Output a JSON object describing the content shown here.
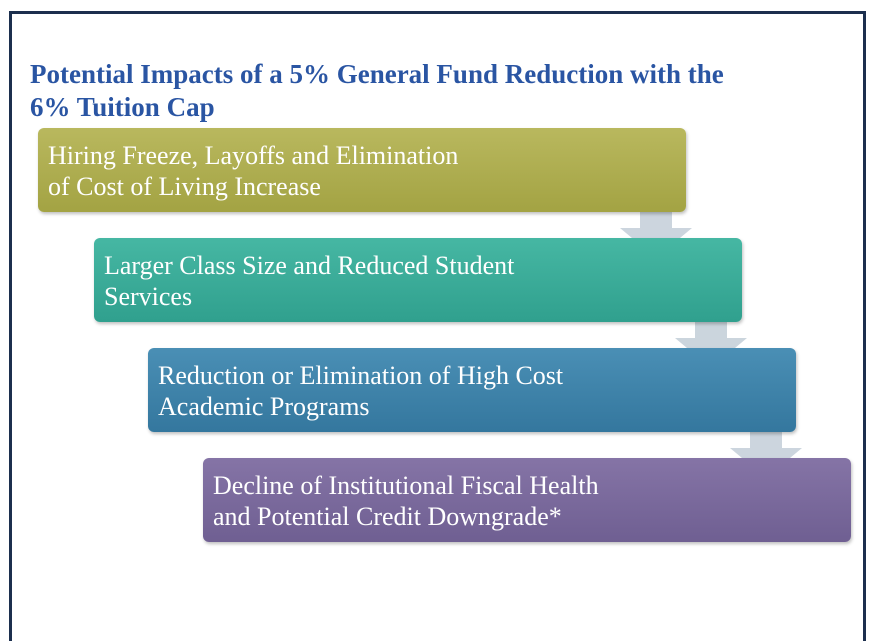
{
  "header": {
    "title_lines": [
      "Potential Impacts of a 5% General Fund Reduction with the",
      "6% Tuition Cap"
    ]
  },
  "steps": [
    {
      "lines": [
        "Hiring Freeze, Layoffs and Elimination",
        "of Cost of Living Increase"
      ]
    },
    {
      "lines": [
        "Larger Class Size and Reduced Student",
        "Services"
      ]
    },
    {
      "lines": [
        "Reduction or Elimination of High Cost",
        "Academic Programs"
      ]
    },
    {
      "lines": [
        "Decline of Institutional Fiscal Health",
        "and Potential Credit Downgrade*"
      ]
    }
  ]
}
